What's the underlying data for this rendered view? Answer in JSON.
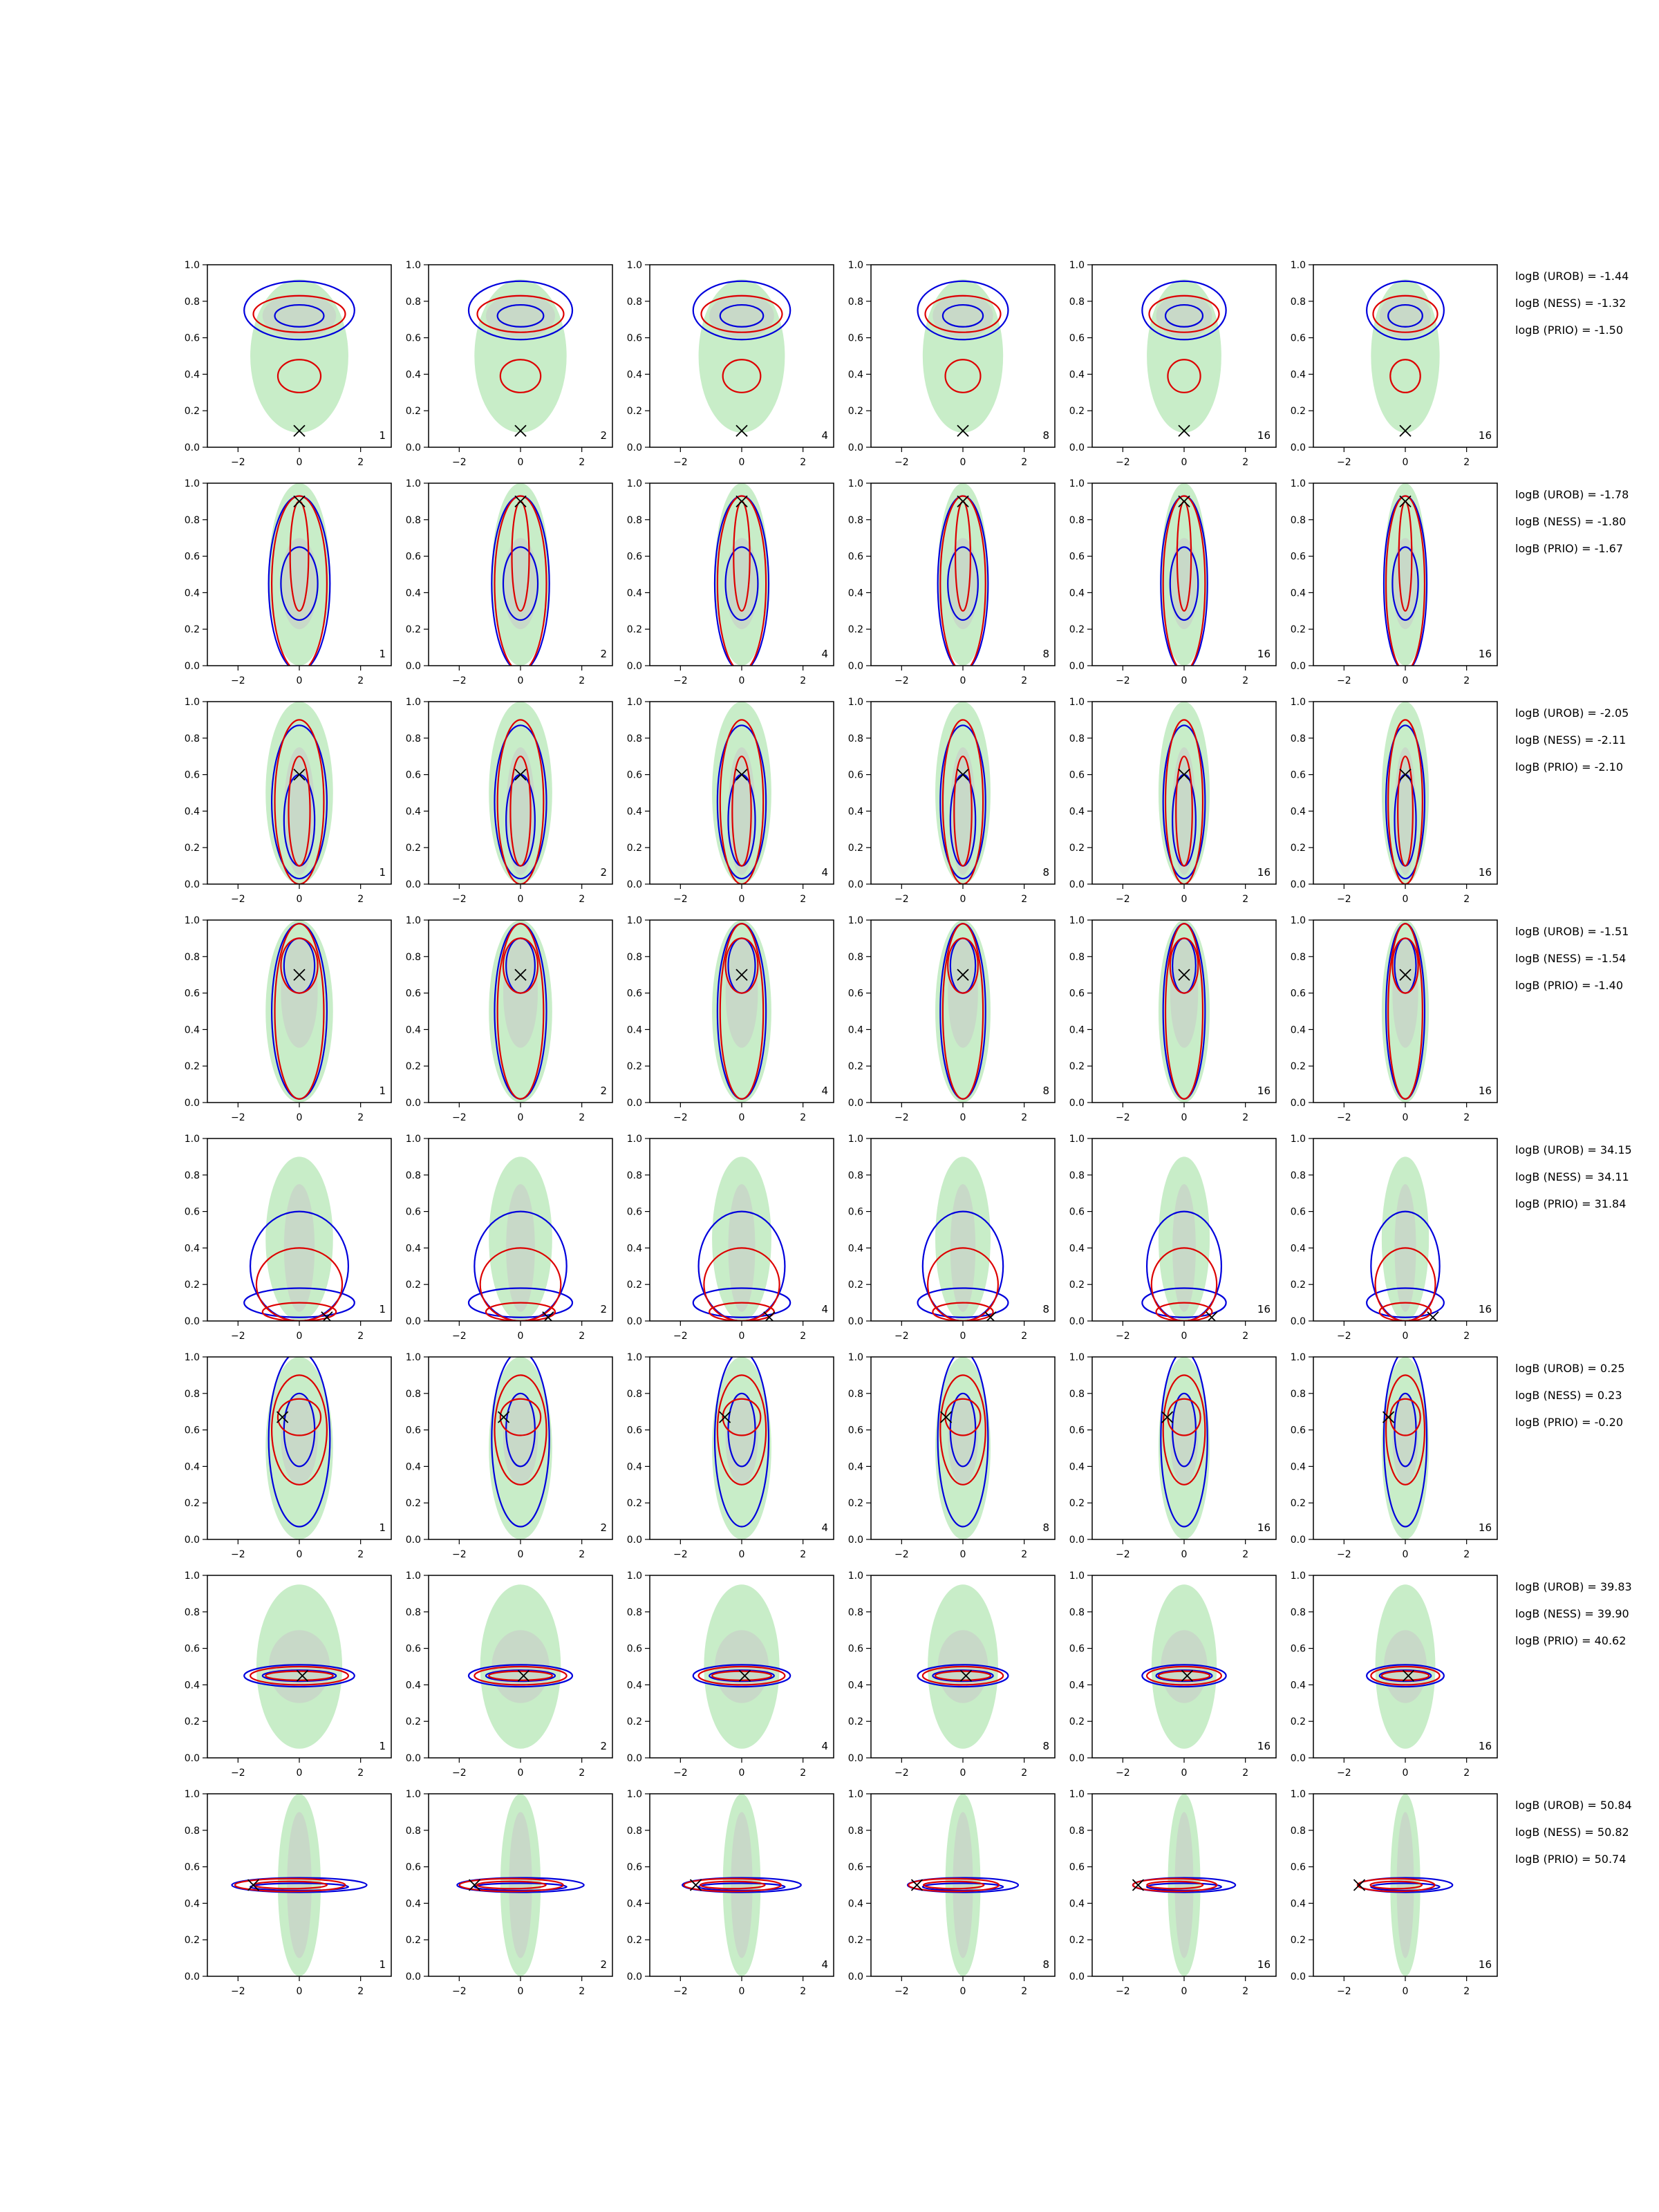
{
  "colors": {
    "green_fill": "#c8edc8",
    "grey_fill": "#c8c8c8",
    "blue": "#0000dd",
    "red": "#dd0000",
    "marker": "#000000"
  },
  "chart_data": {
    "type": "contour-grid",
    "rows": 8,
    "cols": 6,
    "xlim": [
      -3,
      3
    ],
    "ylim": [
      0,
      1
    ],
    "xticks": [
      "−2",
      "0",
      "2"
    ],
    "yticks": [
      "0.0",
      "0.2",
      "0.4",
      "0.6",
      "0.8",
      "1.0"
    ],
    "column_labels": [
      "1",
      "2",
      "4",
      "8",
      "16",
      "16"
    ],
    "row_values": [
      {
        "marker": [
          0,
          0.09
        ],
        "green": [
          0,
          0.5,
          1.6,
          0.42
        ],
        "grey": [
          0,
          0.72,
          1.2,
          0.12
        ],
        "blue": [
          [
            0,
            0.75,
            1.8,
            0.16
          ],
          [
            0,
            0.72,
            0.8,
            0.06
          ]
        ],
        "red": [
          [
            0,
            0.73,
            1.5,
            0.1
          ],
          [
            0,
            0.39,
            0.7,
            0.09
          ]
        ],
        "annotations": [
          "logB (UROB) = -1.44",
          "logB (NESS) = -1.32",
          "logB (PRIO) = -1.50"
        ]
      },
      {
        "marker": [
          0,
          0.9
        ],
        "green": [
          0,
          0.5,
          1.0,
          0.5
        ],
        "grey": [
          0,
          0.45,
          0.6,
          0.25
        ],
        "blue": [
          [
            0,
            0.45,
            1.0,
            0.48
          ],
          [
            0,
            0.45,
            0.6,
            0.2
          ]
        ],
        "red": [
          [
            0,
            0.45,
            0.9,
            0.48
          ],
          [
            0,
            0.6,
            0.3,
            0.3
          ]
        ],
        "annotations": [
          "logB (UROB) = -1.78",
          "logB (NESS) = -1.80",
          "logB (PRIO) = -1.67"
        ]
      },
      {
        "marker": [
          0,
          0.6
        ],
        "green": [
          0,
          0.5,
          1.1,
          0.5
        ],
        "grey": [
          0,
          0.4,
          0.5,
          0.35
        ],
        "blue": [
          [
            0,
            0.45,
            0.9,
            0.42
          ],
          [
            0,
            0.35,
            0.5,
            0.25
          ]
        ],
        "red": [
          [
            0,
            0.45,
            0.8,
            0.45
          ],
          [
            0,
            0.4,
            0.35,
            0.3
          ]
        ],
        "annotations": [
          "logB (UROB) = -2.05",
          "logB (NESS) = -2.11",
          "logB (PRIO) = -2.10"
        ]
      },
      {
        "marker": [
          0,
          0.7
        ],
        "green": [
          0,
          0.5,
          1.1,
          0.5
        ],
        "grey": [
          0,
          0.6,
          0.6,
          0.3
        ],
        "blue": [
          [
            0,
            0.5,
            0.9,
            0.48
          ],
          [
            0,
            0.75,
            0.5,
            0.15
          ]
        ],
        "red": [
          [
            0,
            0.5,
            0.8,
            0.48
          ],
          [
            0,
            0.75,
            0.6,
            0.15
          ]
        ],
        "annotations": [
          "logB (UROB) = -1.51",
          "logB (NESS) = -1.54",
          "logB (PRIO) = -1.40"
        ]
      },
      {
        "marker": [
          0.9,
          0.02
        ],
        "green": [
          0,
          0.45,
          1.1,
          0.45
        ],
        "grey": [
          0,
          0.4,
          0.5,
          0.35
        ],
        "blue": [
          [
            0,
            0.3,
            1.6,
            0.3
          ],
          [
            0,
            0.1,
            1.8,
            0.08
          ]
        ],
        "red": [
          [
            0,
            0.2,
            1.4,
            0.2
          ],
          [
            0,
            0.05,
            1.2,
            0.05
          ]
        ],
        "annotations": [
          "logB (UROB) = 34.15",
          "logB (NESS) = 34.11",
          "logB (PRIO) = 31.84"
        ]
      },
      {
        "marker": [
          -0.55,
          0.67
        ],
        "green": [
          0,
          0.5,
          1.1,
          0.5
        ],
        "grey": [
          0,
          0.55,
          0.6,
          0.25
        ],
        "blue": [
          [
            0,
            0.55,
            1.0,
            0.48
          ],
          [
            0,
            0.6,
            0.5,
            0.2
          ]
        ],
        "red": [
          [
            0,
            0.6,
            0.9,
            0.3
          ],
          [
            0,
            0.67,
            0.7,
            0.1
          ]
        ],
        "annotations": [
          "logB (UROB) = 0.25",
          "logB (NESS) = 0.23",
          "logB (PRIO) = -0.20"
        ]
      },
      {
        "marker": [
          0.1,
          0.45
        ],
        "green": [
          0,
          0.5,
          1.4,
          0.45
        ],
        "grey": [
          0,
          0.5,
          1.0,
          0.2
        ],
        "blue": [
          [
            0,
            0.45,
            1.8,
            0.06
          ],
          [
            0,
            0.45,
            1.2,
            0.03
          ]
        ],
        "red": [
          [
            0,
            0.45,
            1.6,
            0.05
          ],
          [
            0,
            0.45,
            1.1,
            0.025
          ]
        ],
        "annotations": [
          "logB (UROB) = 39.83",
          "logB (NESS) = 39.90",
          "logB (PRIO) = 40.62"
        ]
      },
      {
        "marker": [
          -1.5,
          0.5
        ],
        "green": [
          0,
          0.5,
          0.7,
          0.5
        ],
        "grey": [
          0,
          0.5,
          0.4,
          0.4
        ],
        "blue": [
          [
            0,
            0.5,
            2.2,
            0.04
          ],
          [
            0,
            0.49,
            1.6,
            0.02
          ]
        ],
        "red": [
          [
            -0.3,
            0.5,
            1.8,
            0.035
          ],
          [
            -0.3,
            0.5,
            1.2,
            0.02
          ]
        ],
        "annotations": [
          "logB (UROB) = 50.84",
          "logB (NESS) = 50.82",
          "logB (PRIO) = 50.74"
        ]
      }
    ]
  }
}
